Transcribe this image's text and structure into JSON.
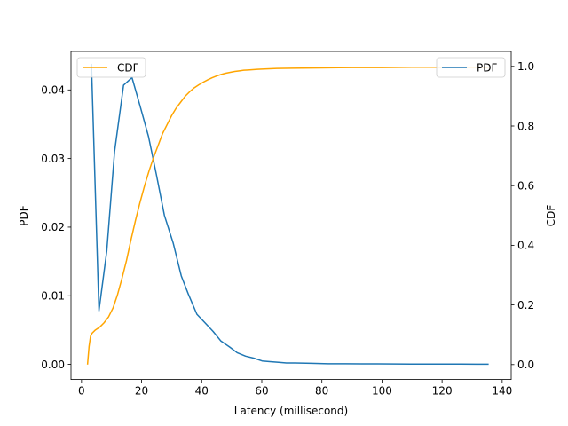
{
  "chart_data": {
    "type": "line",
    "xlabel": "Latency (millisecond)",
    "ylabel_left": "PDF",
    "ylabel_right": "CDF",
    "xlim": [
      -3.5,
      143
    ],
    "ylim_left": [
      -0.0022,
      0.0456
    ],
    "ylim_right": [
      -0.05,
      1.05
    ],
    "xticks": [
      0,
      20,
      40,
      60,
      80,
      100,
      120,
      140
    ],
    "xtick_labels": [
      "0",
      "20",
      "40",
      "60",
      "80",
      "100",
      "120",
      "140"
    ],
    "yticks_left": [
      0.0,
      0.01,
      0.02,
      0.03,
      0.04
    ],
    "ytick_labels_left": [
      "0.00",
      "0.01",
      "0.02",
      "0.03",
      "0.04"
    ],
    "yticks_right": [
      0.0,
      0.2,
      0.4,
      0.6,
      0.8,
      1.0
    ],
    "ytick_labels_right": [
      "0.0",
      "0.2",
      "0.4",
      "0.6",
      "0.8",
      "1.0"
    ],
    "grid": false,
    "series": [
      {
        "name": "PDF",
        "axis": "left",
        "color": "#1f77b4",
        "legend_position": "top-right",
        "x": [
          3.3,
          5.8,
          8.4,
          11.0,
          14.0,
          16.8,
          19.4,
          22.3,
          24.9,
          27.6,
          30.5,
          33.2,
          35.5,
          38.4,
          41.0,
          43.8,
          46.4,
          49.4,
          51.8,
          54.6,
          57.4,
          60.1,
          62.7,
          65.6,
          68.2,
          71.0,
          76.5,
          82.1,
          87.8,
          93.2,
          98.6,
          104.2,
          109.6,
          115.2,
          120.8,
          126.2,
          131.6,
          135.5
        ],
        "y": [
          0.0438,
          0.0078,
          0.0165,
          0.031,
          0.0407,
          0.0418,
          0.0378,
          0.0332,
          0.0277,
          0.0217,
          0.0177,
          0.0129,
          0.0103,
          0.0073,
          0.0061,
          0.0048,
          0.0034,
          0.0025,
          0.0017,
          0.0012,
          0.0009,
          0.0005,
          0.0004,
          0.0003,
          0.0002,
          0.0002,
          0.00015,
          0.0001,
          0.0001,
          8e-05,
          8e-05,
          6e-05,
          5e-05,
          5e-05,
          4e-05,
          4e-05,
          3e-05,
          3e-05
        ]
      },
      {
        "name": "CDF",
        "axis": "right",
        "color": "#ffa500",
        "legend_position": "top-left",
        "x": [
          2.0,
          2.5,
          3.0,
          3.5,
          4.5,
          6.0,
          7.5,
          9.0,
          10.5,
          12.0,
          13.5,
          15.0,
          16.5,
          18.0,
          19.5,
          21.0,
          22.5,
          24.0,
          25.5,
          27.0,
          28.5,
          30.0,
          31.5,
          33.0,
          34.5,
          36.0,
          37.5,
          39.0,
          40.5,
          42.0,
          43.5,
          45.0,
          46.5,
          48.0,
          49.5,
          51.0,
          52.5,
          54.0,
          55.5,
          57.0,
          58.5,
          60.0,
          65.0,
          70.0,
          80.0,
          90.0,
          100.0,
          110.0,
          120.0,
          130.0,
          135.5
        ],
        "y": [
          0.0,
          0.06,
          0.095,
          0.105,
          0.115,
          0.125,
          0.14,
          0.16,
          0.19,
          0.235,
          0.29,
          0.35,
          0.42,
          0.485,
          0.545,
          0.6,
          0.65,
          0.695,
          0.735,
          0.775,
          0.805,
          0.835,
          0.86,
          0.88,
          0.9,
          0.915,
          0.928,
          0.938,
          0.947,
          0.955,
          0.962,
          0.968,
          0.973,
          0.977,
          0.98,
          0.983,
          0.985,
          0.987,
          0.988,
          0.989,
          0.99,
          0.991,
          0.993,
          0.994,
          0.995,
          0.996,
          0.996,
          0.997,
          0.997,
          0.997,
          0.997
        ]
      }
    ]
  }
}
